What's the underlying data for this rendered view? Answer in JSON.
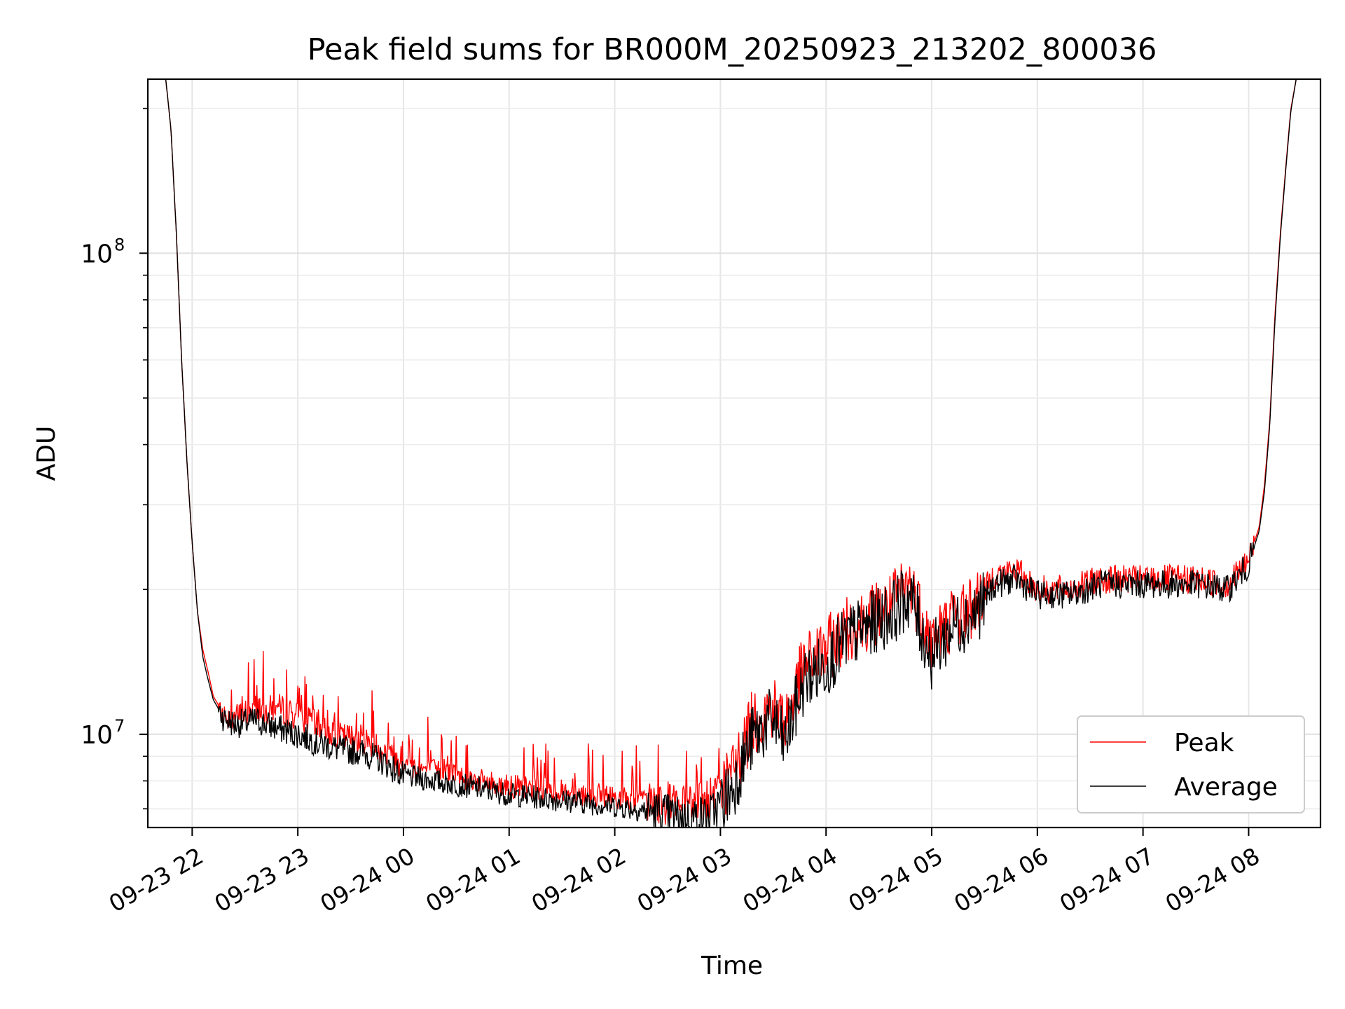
{
  "chart_data": {
    "type": "line",
    "title": "Peak field sums for BR000M_20250923_213202_800036",
    "xlabel": "Time",
    "ylabel": "ADU",
    "yscale": "log",
    "xlim_hours": [
      -0.42,
      10.68
    ],
    "ylim": [
      6400000,
      230000000
    ],
    "x_ticks": [
      {
        "label": "09-23 22",
        "t": 0
      },
      {
        "label": "09-23 23",
        "t": 1
      },
      {
        "label": "09-24 00",
        "t": 2
      },
      {
        "label": "09-24 01",
        "t": 3
      },
      {
        "label": "09-24 02",
        "t": 4
      },
      {
        "label": "09-24 03",
        "t": 5
      },
      {
        "label": "09-24 04",
        "t": 6
      },
      {
        "label": "09-24 05",
        "t": 7
      },
      {
        "label": "09-24 06",
        "t": 8
      },
      {
        "label": "09-24 07",
        "t": 9
      },
      {
        "label": "09-24 08",
        "t": 10
      }
    ],
    "y_ticks": [
      {
        "base": "10",
        "exp": "7",
        "value": 10000000
      },
      {
        "base": "10",
        "exp": "8",
        "value": 100000000
      }
    ],
    "grid": true,
    "legend_position": "lower-right",
    "x_unit": "hours since 09-23 22:00",
    "series": [
      {
        "name": "Peak",
        "color": "#ff0000",
        "anchors": [
          [
            -0.25,
            230000000
          ],
          [
            -0.2,
            180000000
          ],
          [
            -0.15,
            110000000
          ],
          [
            -0.1,
            60000000
          ],
          [
            -0.05,
            37000000
          ],
          [
            0.0,
            25000000
          ],
          [
            0.05,
            18000000
          ],
          [
            0.1,
            15000000
          ],
          [
            0.15,
            13500000
          ],
          [
            0.2,
            12000000
          ],
          [
            0.3,
            11000000
          ],
          [
            0.4,
            10800000
          ],
          [
            0.55,
            11200000
          ],
          [
            0.6,
            11500000
          ],
          [
            0.7,
            11200000
          ],
          [
            0.8,
            11400000
          ],
          [
            1.0,
            10900000
          ],
          [
            1.2,
            10400000
          ],
          [
            1.4,
            9900000
          ],
          [
            1.6,
            9800000
          ],
          [
            1.8,
            9300000
          ],
          [
            2.0,
            8600000
          ],
          [
            2.3,
            8400000
          ],
          [
            2.6,
            8100000
          ],
          [
            3.0,
            7800000
          ],
          [
            3.5,
            7600000
          ],
          [
            4.0,
            7400000
          ],
          [
            4.4,
            7200000
          ],
          [
            4.7,
            7000000
          ],
          [
            4.9,
            7300000
          ],
          [
            5.1,
            8200000
          ],
          [
            5.3,
            10500000
          ],
          [
            5.5,
            11500000
          ],
          [
            5.6,
            10500000
          ],
          [
            5.8,
            14000000
          ],
          [
            6.0,
            15000000
          ],
          [
            6.2,
            16500000
          ],
          [
            6.4,
            17500000
          ],
          [
            6.6,
            18500000
          ],
          [
            6.8,
            20500000
          ],
          [
            6.9,
            18000000
          ],
          [
            7.0,
            15500000
          ],
          [
            7.2,
            17500000
          ],
          [
            7.4,
            18500000
          ],
          [
            7.6,
            21500000
          ],
          [
            7.8,
            22000000
          ],
          [
            8.0,
            20000000
          ],
          [
            8.3,
            20000000
          ],
          [
            8.6,
            21000000
          ],
          [
            8.9,
            21000000
          ],
          [
            9.2,
            21000000
          ],
          [
            9.5,
            21000000
          ],
          [
            9.8,
            20500000
          ],
          [
            10.0,
            23000000
          ],
          [
            10.1,
            27000000
          ],
          [
            10.15,
            33000000
          ],
          [
            10.2,
            45000000
          ],
          [
            10.25,
            75000000
          ],
          [
            10.3,
            110000000
          ],
          [
            10.35,
            150000000
          ],
          [
            10.4,
            200000000
          ],
          [
            10.45,
            230000000
          ]
        ]
      },
      {
        "name": "Average",
        "color": "#000000",
        "anchors": [
          [
            -0.25,
            230000000
          ],
          [
            -0.2,
            180000000
          ],
          [
            -0.15,
            110000000
          ],
          [
            -0.1,
            60000000
          ],
          [
            -0.05,
            37000000
          ],
          [
            0.0,
            25000000
          ],
          [
            0.05,
            18000000
          ],
          [
            0.1,
            14500000
          ],
          [
            0.15,
            13000000
          ],
          [
            0.2,
            11800000
          ],
          [
            0.3,
            10800000
          ],
          [
            0.4,
            10500000
          ],
          [
            0.55,
            10600000
          ],
          [
            0.6,
            10700000
          ],
          [
            0.7,
            10500000
          ],
          [
            0.8,
            10300000
          ],
          [
            1.0,
            10000000
          ],
          [
            1.2,
            9600000
          ],
          [
            1.4,
            9300000
          ],
          [
            1.6,
            9200000
          ],
          [
            1.8,
            8800000
          ],
          [
            2.0,
            8200000
          ],
          [
            2.3,
            8000000
          ],
          [
            2.6,
            7800000
          ],
          [
            3.0,
            7500000
          ],
          [
            3.5,
            7300000
          ],
          [
            4.0,
            7100000
          ],
          [
            4.4,
            6900000
          ],
          [
            4.7,
            6700000
          ],
          [
            4.9,
            6800000
          ],
          [
            5.1,
            7600000
          ],
          [
            5.3,
            9800000
          ],
          [
            5.5,
            10800000
          ],
          [
            5.6,
            9500000
          ],
          [
            5.8,
            13000000
          ],
          [
            6.0,
            14000000
          ],
          [
            6.2,
            15800000
          ],
          [
            6.4,
            16800000
          ],
          [
            6.6,
            17800000
          ],
          [
            6.8,
            19500000
          ],
          [
            6.9,
            16500000
          ],
          [
            7.0,
            14500000
          ],
          [
            7.2,
            16800000
          ],
          [
            7.4,
            17800000
          ],
          [
            7.6,
            20500000
          ],
          [
            7.8,
            21000000
          ],
          [
            8.0,
            19500000
          ],
          [
            8.3,
            19500000
          ],
          [
            8.6,
            20500000
          ],
          [
            8.9,
            20500000
          ],
          [
            9.2,
            20500000
          ],
          [
            9.5,
            20500000
          ],
          [
            9.8,
            20000000
          ],
          [
            10.0,
            22500000
          ],
          [
            10.1,
            26500000
          ],
          [
            10.15,
            32000000
          ],
          [
            10.2,
            44000000
          ],
          [
            10.25,
            73000000
          ],
          [
            10.3,
            108000000
          ],
          [
            10.35,
            148000000
          ],
          [
            10.4,
            198000000
          ],
          [
            10.45,
            230000000
          ]
        ]
      }
    ]
  }
}
